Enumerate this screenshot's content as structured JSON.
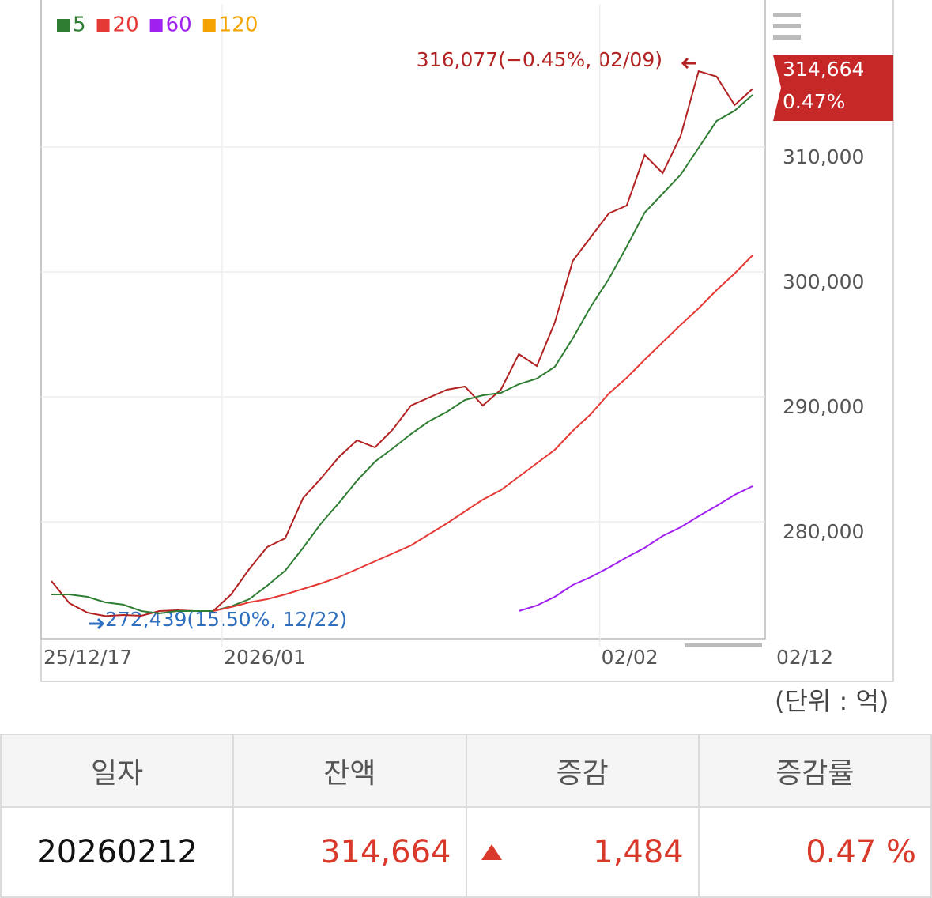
{
  "chart_data": {
    "type": "line",
    "categories": [
      "25/12/17",
      null,
      null,
      null,
      null,
      null,
      null,
      null,
      null,
      null,
      "2026/01",
      null,
      null,
      null,
      null,
      null,
      null,
      null,
      null,
      null,
      null,
      null,
      null,
      null,
      null,
      null,
      null,
      null,
      null,
      null,
      null,
      "02/02",
      null,
      null,
      null,
      null,
      null,
      null,
      null,
      "02/12"
    ],
    "series": [
      {
        "color": "#b22222",
        "values": [
          275252,
          273480,
          272720,
          272439,
          272530,
          272467,
          272847,
          272910,
          272847,
          272850,
          274176,
          276202,
          277974,
          278671,
          281899,
          283482,
          285191,
          286520,
          285950,
          287406,
          289305,
          289938,
          290571,
          290824,
          289305,
          290571,
          293420,
          292470,
          295952,
          300889,
          302788,
          304687,
          305320,
          309371,
          307915,
          310890,
          316077,
          315640,
          313360,
          314664
        ]
      },
      {
        "name": "5",
        "color": "#2e7d32",
        "values": [
          274176,
          274176,
          273987,
          273544,
          273356,
          272847,
          272657,
          272847,
          272847,
          272847,
          273227,
          273796,
          274872,
          276075,
          277911,
          279873,
          281519,
          283292,
          284811,
          285887,
          287026,
          288039,
          288799,
          289748,
          290128,
          290318,
          291014,
          291457,
          292407,
          294686,
          297218,
          299433,
          302028,
          304750,
          306270,
          307789,
          309941,
          312093,
          312916,
          314182
        ]
      },
      {
        "name": "20",
        "color": "#e53935",
        "values": [
          null,
          null,
          null,
          null,
          null,
          null,
          null,
          null,
          null,
          272847,
          273164,
          273544,
          273796,
          274176,
          274620,
          275063,
          275569,
          276202,
          276835,
          277468,
          278101,
          278987,
          279873,
          280823,
          281772,
          282532,
          283608,
          284684,
          285760,
          287280,
          288609,
          290255,
          291521,
          292977,
          294369,
          295762,
          297091,
          298547,
          299876,
          301332
        ]
      },
      {
        "name": "60",
        "color": "#a020f0",
        "values": [
          null,
          null,
          null,
          null,
          null,
          null,
          null,
          null,
          null,
          null,
          null,
          null,
          null,
          null,
          null,
          null,
          null,
          null,
          null,
          null,
          null,
          null,
          null,
          null,
          null,
          null,
          272847,
          273290,
          273987,
          274936,
          275569,
          276329,
          277152,
          277911,
          278861,
          279557,
          280443,
          281266,
          282152,
          282848
        ]
      },
      {
        "name": "120",
        "color": "#f4a300",
        "values": [
          null,
          null,
          null,
          null,
          null,
          null,
          null,
          null,
          null,
          null,
          null,
          null,
          null,
          null,
          null,
          null,
          null,
          null,
          null,
          null,
          null,
          null,
          null,
          null,
          null,
          null,
          null,
          null,
          null,
          null,
          null,
          null,
          null,
          null,
          null,
          null,
          null,
          null,
          null,
          null
        ]
      }
    ],
    "ylim": [
      270630,
      321460
    ],
    "yticks": [
      {
        "value": 280000,
        "label": "280,000"
      },
      {
        "value": 290000,
        "label": "290,000"
      },
      {
        "value": 300000,
        "label": "300,000"
      },
      {
        "value": 310000,
        "label": "310,000"
      }
    ],
    "grid": true,
    "annotations": [
      "316,077(−0.45%, 02/09)",
      "272,439(15.50%, 12/22)"
    ],
    "last_value": "314,664",
    "last_change": "0.47%"
  },
  "unit": "(단위 : 억)",
  "table": {
    "headers": [
      "일자",
      "잔액",
      "증감",
      "증감률"
    ],
    "rows": [
      [
        "20260212",
        "314,664",
        "1,484",
        "0.47 %"
      ]
    ]
  }
}
